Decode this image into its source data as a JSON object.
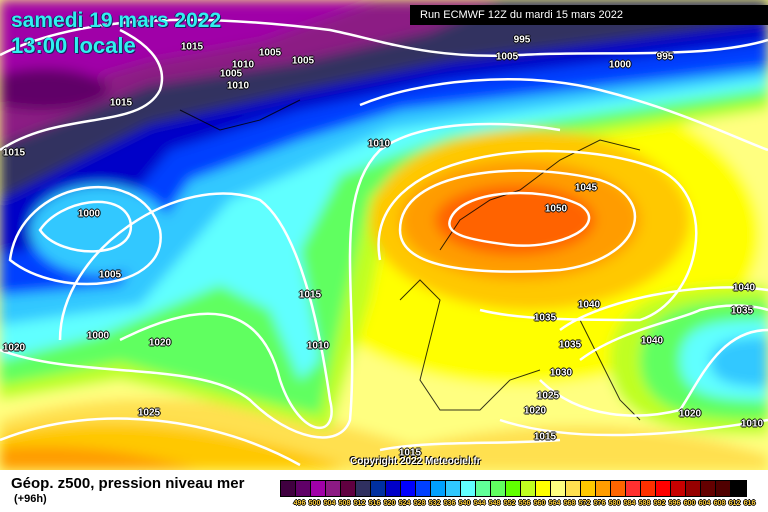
{
  "header": {
    "date": "samedi 19 mars 2022",
    "time": "13:00 locale",
    "run": "Run ECMWF 12Z du mardi 15 mars 2022"
  },
  "copyright": "Copyright 2022 Meteociel.fr",
  "legend": {
    "title": "Géop. z500, pression niveau mer",
    "lead": "(+96h)",
    "labels": [
      "496",
      "500",
      "504",
      "508",
      "512",
      "516",
      "520",
      "524",
      "528",
      "532",
      "536",
      "540",
      "544",
      "548",
      "552",
      "556",
      "560",
      "564",
      "568",
      "572",
      "576",
      "580",
      "584",
      "588",
      "592",
      "596",
      "600",
      "604",
      "608",
      "612",
      "616"
    ],
    "colors": [
      "#400040",
      "#600068",
      "#a000a8",
      "#8c1a84",
      "#600040",
      "#303060",
      "#0030a0",
      "#0000c8",
      "#0000ff",
      "#0040ff",
      "#00a0ff",
      "#30c8ff",
      "#60ffff",
      "#60ff98",
      "#60ff60",
      "#60ff00",
      "#c0ff20",
      "#ffff00",
      "#ffff80",
      "#ffe050",
      "#ffc800",
      "#ff9c00",
      "#ff6400",
      "#ff3030",
      "#ff3000",
      "#ff0000",
      "#c80000",
      "#960000",
      "#640000",
      "#500000",
      "#000000"
    ]
  },
  "isobar_labels": [
    "1015",
    "1005",
    "1010",
    "1005",
    "1005",
    "1010",
    "1015",
    "995",
    "1005",
    "1000",
    "995",
    "1015",
    "1010",
    "1000",
    "1045",
    "1050",
    "1005",
    "1015",
    "1040",
    "1040",
    "1035",
    "1035",
    "1000",
    "1020",
    "1010",
    "1020",
    "1040",
    "1035",
    "1030",
    "1025",
    "1020",
    "1025",
    "1020",
    "1015",
    "1015",
    "1010"
  ]
}
